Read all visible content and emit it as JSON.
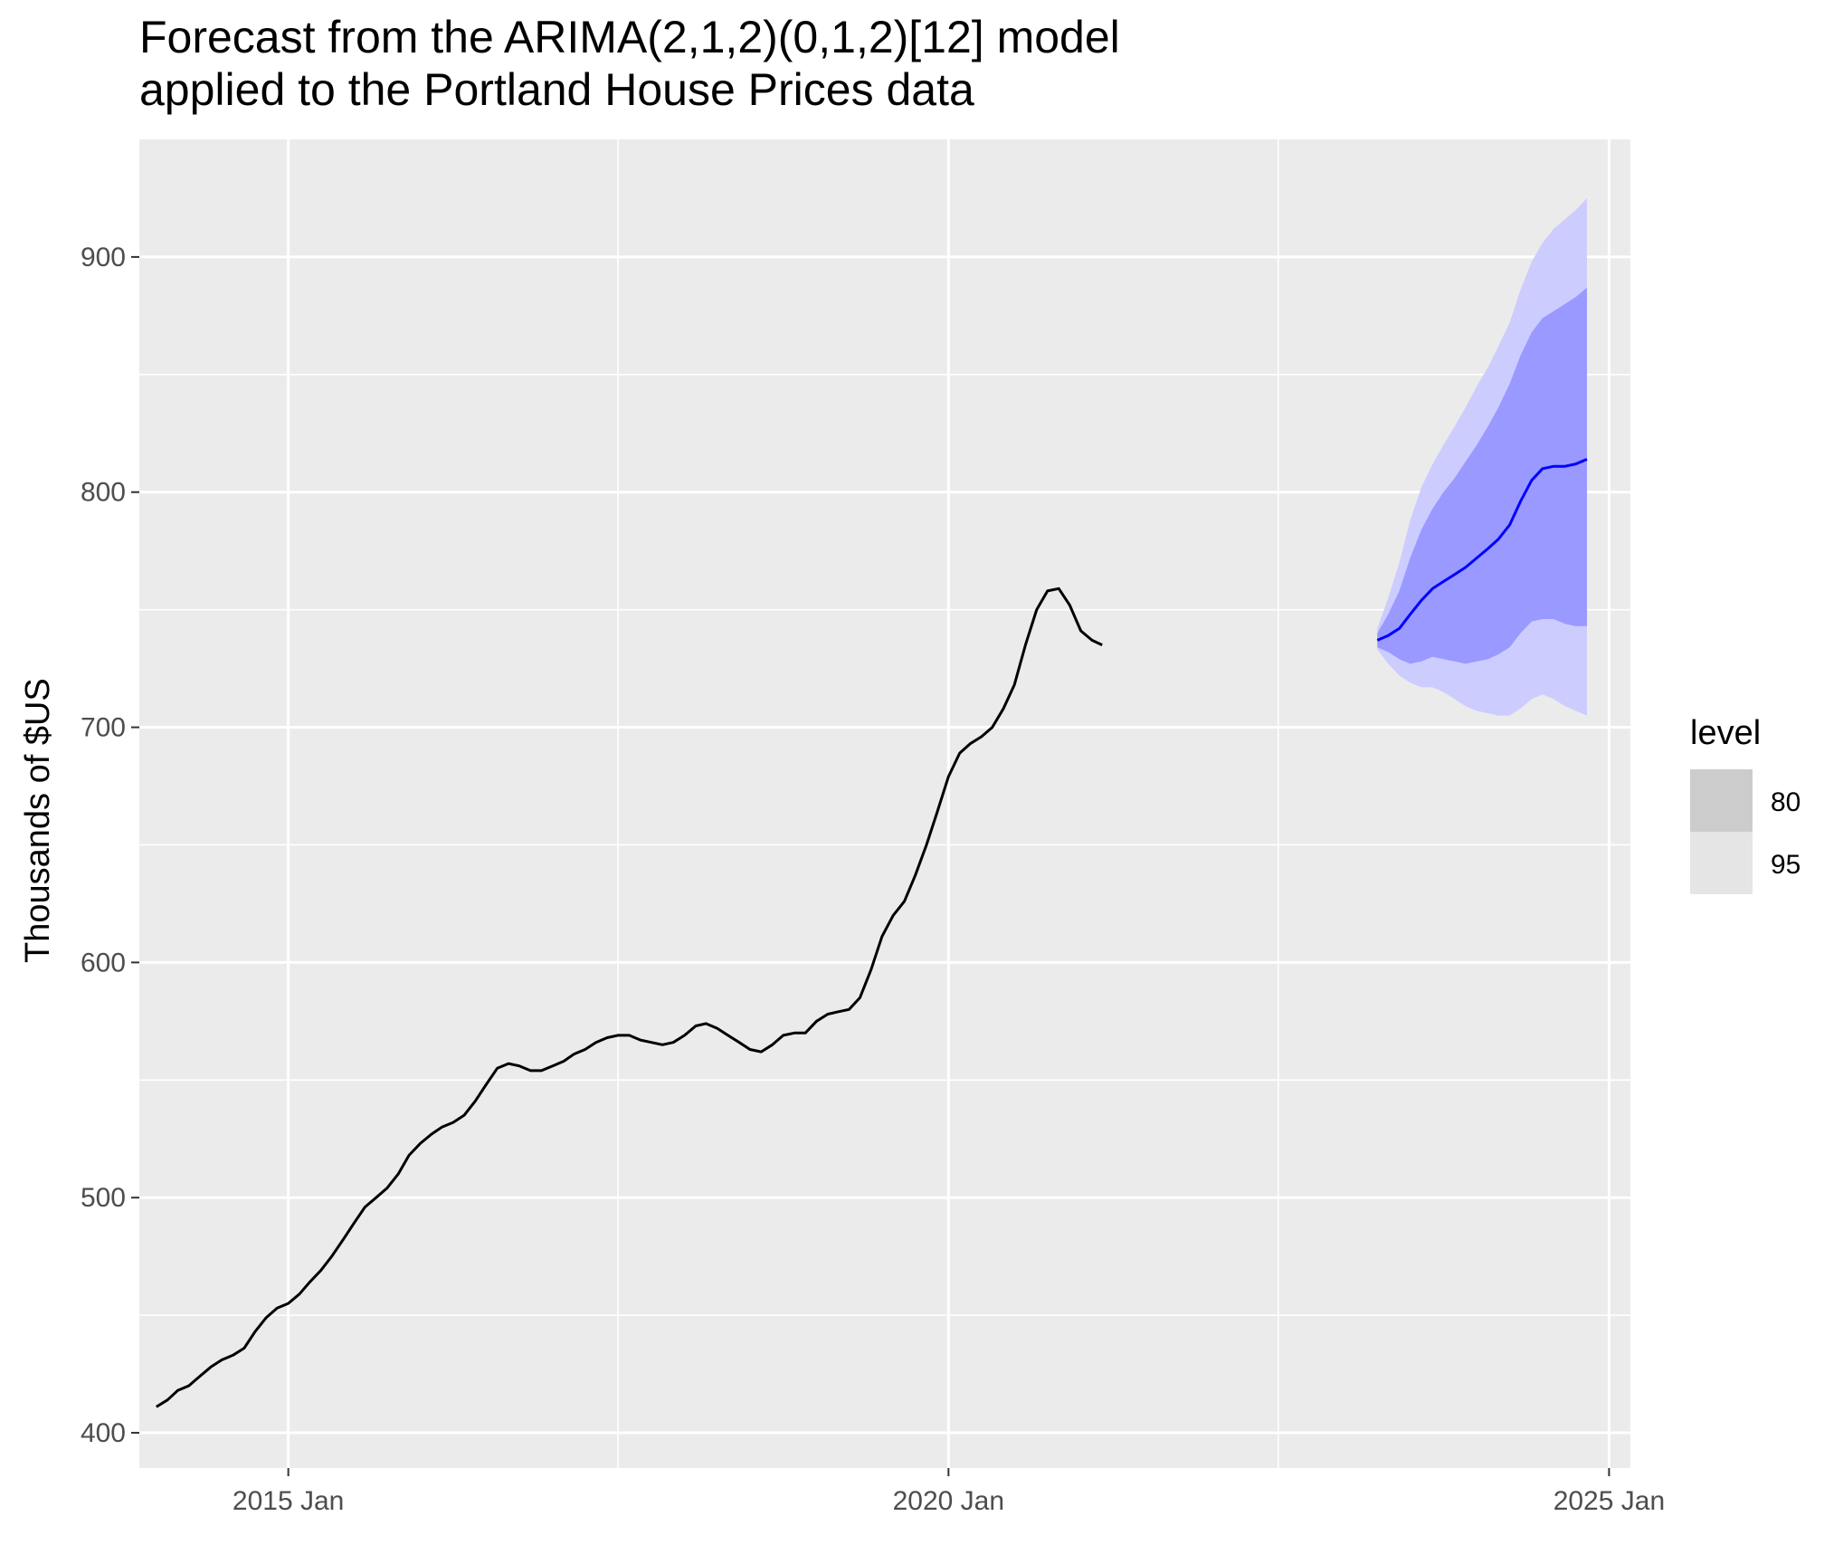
{
  "chart_data": {
    "type": "line",
    "title_lines": [
      "Forecast from the ARIMA(2,1,2)(0,1,2)[12] model",
      "applied to the Portland House Prices data"
    ],
    "xlabel": "",
    "ylabel": "Thousands of $US",
    "x_axis": {
      "type": "date",
      "range": [
        "2013-11-15",
        "2025-03-01"
      ],
      "ticks": [
        {
          "date": "2015-01-01",
          "label": "2015 Jan"
        },
        {
          "date": "2020-01-01",
          "label": "2020 Jan"
        },
        {
          "date": "2025-01-01",
          "label": "2025 Jan"
        }
      ],
      "minor_ticks": [
        "2017-07-01",
        "2022-07-01"
      ]
    },
    "y_axis": {
      "range": [
        385,
        950
      ],
      "ticks": [
        400,
        500,
        600,
        700,
        800,
        900
      ],
      "minor_ticks": [
        450,
        550,
        650,
        750,
        850
      ]
    },
    "grid": true,
    "colors": {
      "panel": "#ebebeb",
      "grid": "#ffffff",
      "history_line": "#000000",
      "forecast_line": "#0000ff",
      "band_80": "#9999ff",
      "band_95": "#ccccff",
      "legend_80": "#cccccc",
      "legend_95": "#e5e5e5"
    },
    "legend": {
      "title": "level",
      "position": "right",
      "entries": [
        {
          "label": "80",
          "color": "#cccccc"
        },
        {
          "label": "95",
          "color": "#e5e5e5"
        }
      ]
    },
    "series": [
      {
        "role": "history",
        "start": "2014-01",
        "values": [
          411,
          414,
          418,
          420,
          424,
          428,
          431,
          433,
          436,
          443,
          449,
          453,
          455,
          459,
          464,
          469,
          475,
          482,
          489,
          496,
          500,
          504,
          510,
          518,
          523,
          527,
          530,
          532,
          535,
          541,
          548,
          555,
          557,
          556,
          554,
          554,
          556,
          558,
          561,
          563,
          566,
          568,
          569,
          569,
          567,
          566,
          565,
          566,
          569,
          573,
          574,
          572,
          569,
          566,
          563,
          562,
          565,
          569,
          570,
          570,
          575,
          578,
          579,
          580,
          585,
          597,
          611,
          620,
          626,
          637,
          650,
          664,
          679,
          689,
          693,
          696,
          700,
          708,
          718,
          735,
          750,
          758,
          759,
          752,
          741,
          737,
          735
        ]
      },
      {
        "role": "forecast",
        "start": "2023-04",
        "mean": [
          737,
          739,
          742,
          748,
          754,
          759,
          762,
          765,
          768,
          772,
          776,
          780,
          786,
          796,
          805,
          810,
          811,
          811,
          812,
          814
        ],
        "lower_80": [
          734,
          732,
          729,
          727,
          728,
          730,
          729,
          728,
          727,
          728,
          729,
          731,
          734,
          740,
          745,
          746,
          746,
          744,
          743,
          743
        ],
        "upper_80": [
          740,
          748,
          758,
          772,
          784,
          793,
          800,
          806,
          813,
          820,
          828,
          836,
          846,
          858,
          868,
          874,
          877,
          880,
          883,
          887
        ],
        "lower_95": [
          733,
          727,
          722,
          719,
          717,
          717,
          715,
          712,
          709,
          707,
          706,
          705,
          705,
          708,
          712,
          714,
          712,
          709,
          707,
          705
        ],
        "upper_95": [
          742,
          755,
          770,
          788,
          802,
          812,
          820,
          828,
          836,
          845,
          853,
          862,
          872,
          886,
          898,
          906,
          912,
          916,
          920,
          925
        ]
      }
    ]
  }
}
